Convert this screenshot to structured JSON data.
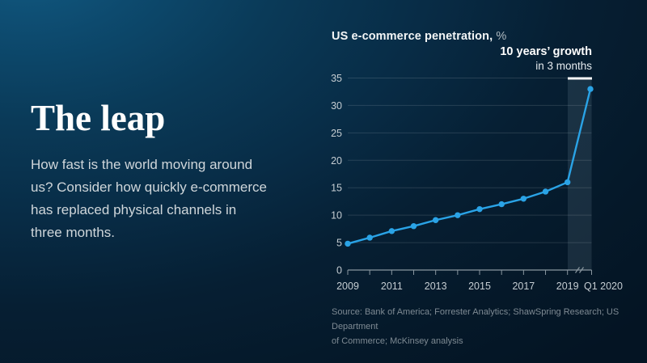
{
  "left_panel": {
    "title": "The leap",
    "description": "How fast is the world moving around\nus? Consider how quickly e-commerce\nhas replaced physical channels in\nthree months."
  },
  "chart": {
    "title": "US e-commerce penetration,",
    "unit": "%",
    "annotation_line1": "10 years’ growth",
    "annotation_line2": "in 3 months",
    "source": "Source: Bank of America; Forrester Analytics; ShawSpring Research; US Department\nof Commerce; McKinsey analysis"
  },
  "chart_data": {
    "type": "line",
    "title": "US e-commerce penetration, %",
    "categories": [
      "2009",
      "2010",
      "2011",
      "2012",
      "2013",
      "2014",
      "2015",
      "2016",
      "2017",
      "2018",
      "2019",
      "Q1 2020"
    ],
    "values": [
      4.8,
      5.9,
      7.1,
      8.0,
      9.1,
      10.0,
      11.1,
      12.0,
      13.0,
      14.3,
      16.0,
      33.0
    ],
    "x_tick_labels": [
      "2009",
      "2011",
      "2013",
      "2015",
      "2017",
      "2019",
      "Q1 2020"
    ],
    "y_ticks": [
      0,
      5,
      10,
      15,
      20,
      25,
      30,
      35
    ],
    "ylim": [
      0,
      35
    ],
    "grid": true,
    "legend": "none",
    "axis_break_between": [
      "2019",
      "Q1 2020"
    ],
    "highlight_band": {
      "from": "2019",
      "to": "Q1 2020",
      "label": "10 years’ growth in 3 months"
    },
    "line_color": "#2aa3e6",
    "band_color": "rgba(164,190,205,0.13)",
    "axis_color": "#8a97a0",
    "grid_color": "rgba(255,255,255,0.13)",
    "tick_label_color": "#c5cdd2"
  }
}
